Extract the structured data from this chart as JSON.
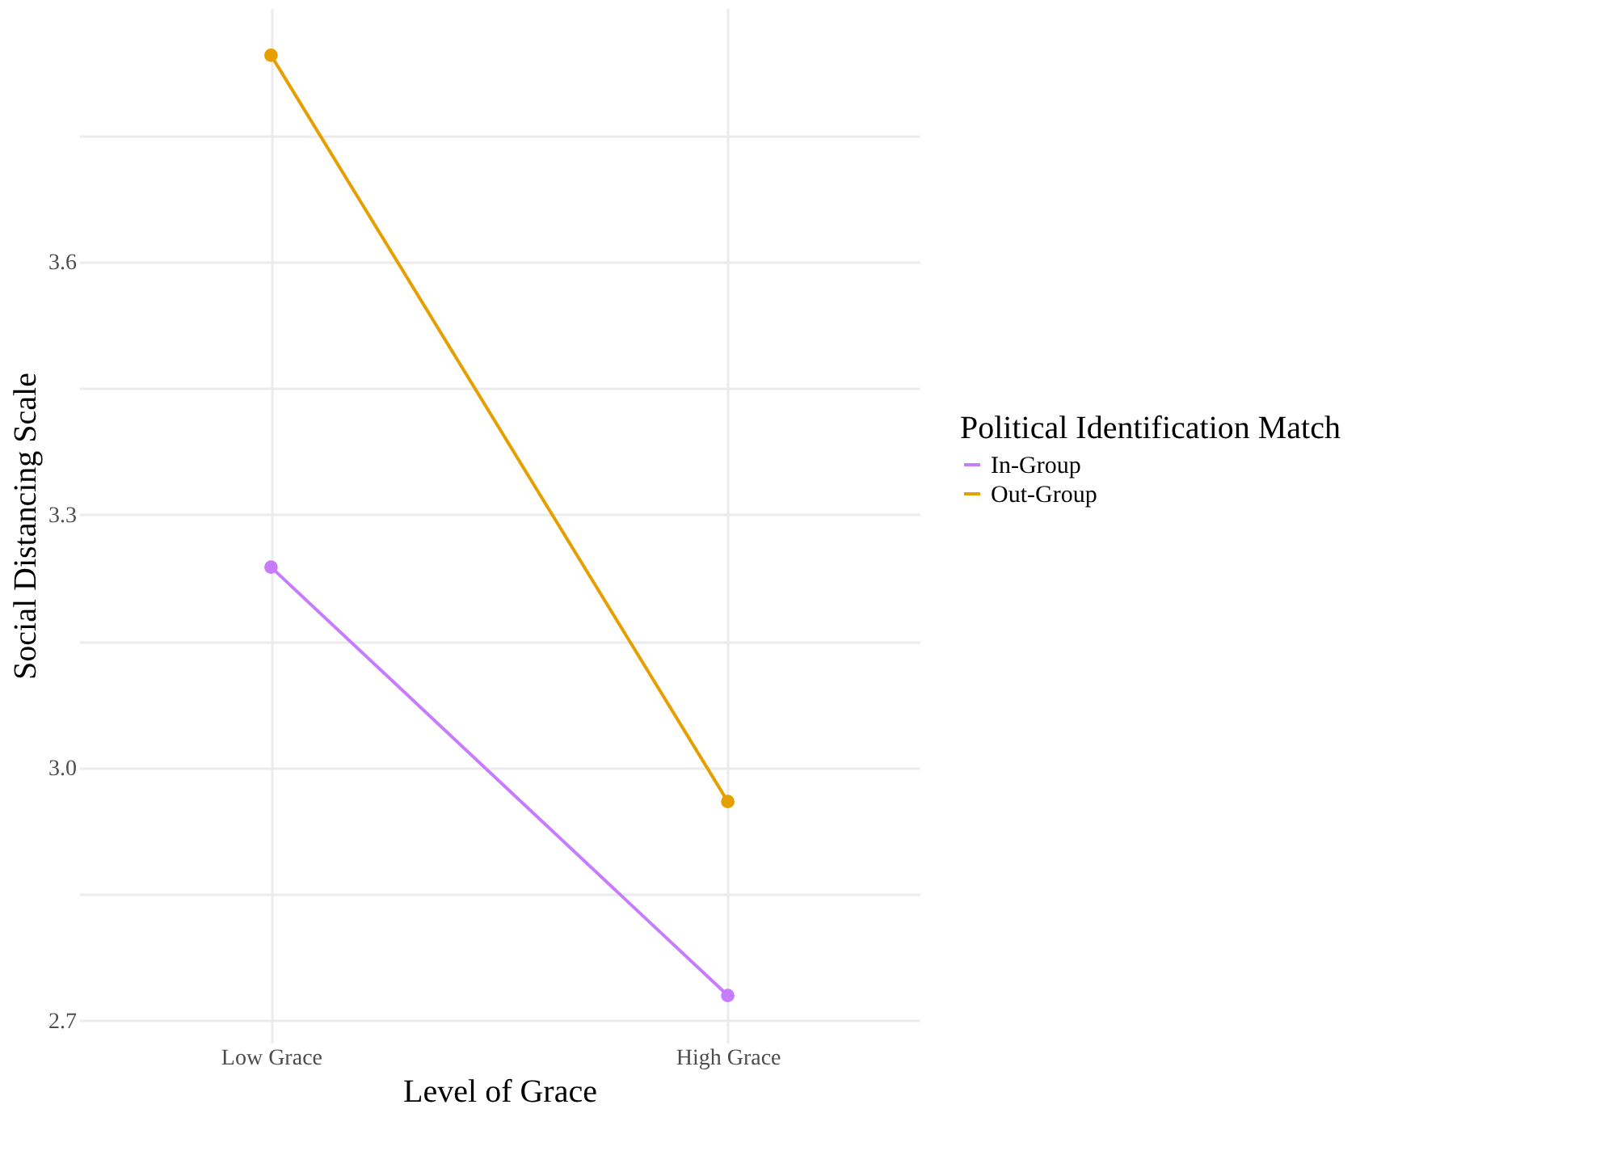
{
  "chart_data": {
    "type": "line",
    "xlabel": "Level of Grace",
    "ylabel": "Social Distancing Scale",
    "legend_title": "Political Identification Match",
    "categories": [
      "Low Grace",
      "High Grace"
    ],
    "series": [
      {
        "name": "In-Group",
        "color": "#c77cff",
        "values": [
          3.238,
          2.73
        ]
      },
      {
        "name": "Out-Group",
        "color": "#e69f00",
        "values": [
          3.845,
          2.96
        ]
      }
    ],
    "ylim": [
      2.674,
      3.901
    ],
    "yticks": [
      {
        "value": 2.7,
        "label": "2.7"
      },
      {
        "value": 2.85,
        "label": null
      },
      {
        "value": 3.0,
        "label": "3.0"
      },
      {
        "value": 3.15,
        "label": null
      },
      {
        "value": 3.3,
        "label": "3.3"
      },
      {
        "value": 3.45,
        "label": null
      },
      {
        "value": 3.6,
        "label": "3.6"
      },
      {
        "value": 3.75,
        "label": null
      }
    ],
    "grid": true,
    "legend": "right",
    "marker": "circle",
    "line_style": "solid"
  }
}
